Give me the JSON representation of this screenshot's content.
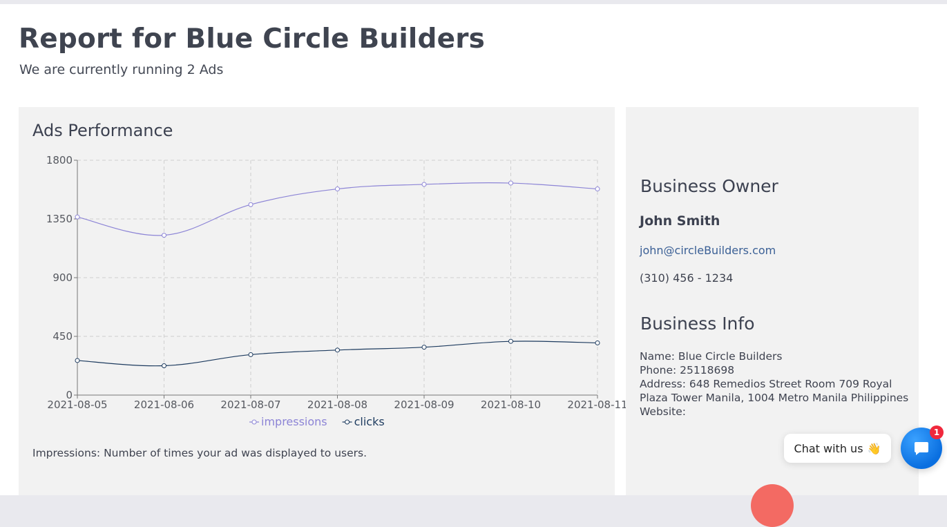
{
  "header": {
    "title": "Report for Blue Circle Builders",
    "subtitle": "We are currently running 2 Ads"
  },
  "performance": {
    "title": "Ads Performance",
    "note": "Impressions: Number of times your ad was displayed to users."
  },
  "chart_data": {
    "type": "line",
    "title": "Ads Performance",
    "xlabel": "",
    "ylabel": "",
    "x": [
      "2021-08-05",
      "2021-08-06",
      "2021-08-07",
      "2021-08-08",
      "2021-08-09",
      "2021-08-10",
      "2021-08-11"
    ],
    "y_ticks": [
      0,
      450,
      900,
      1350,
      1800
    ],
    "ylim": [
      0,
      1800
    ],
    "grid": true,
    "legend_position": "bottom",
    "series": [
      {
        "name": "impressions",
        "color": "#8c84d6",
        "values": [
          1365,
          1225,
          1460,
          1580,
          1615,
          1625,
          1580
        ]
      },
      {
        "name": "clicks",
        "color": "#1c3a5e",
        "values": [
          265,
          225,
          310,
          345,
          367,
          412,
          400
        ]
      }
    ]
  },
  "owner": {
    "heading": "Business Owner",
    "name": "John Smith",
    "email": "john@circleBuilders.com",
    "phone": "(310) 456 - 1234"
  },
  "info": {
    "heading": "Business Info",
    "name_line": "Name: Blue Circle Builders",
    "phone_line": "Phone: 25118698",
    "address_line": "Address: 648 Remedios Street Room 709 Royal Plaza Tower Manila, 1004 Metro Manila Philippines",
    "website_line": "Website:"
  },
  "chat": {
    "label": "Chat with us",
    "emoji": "👋",
    "badge": "1",
    "icon": "chat-icon"
  },
  "colors": {
    "panel_bg": "#f2f2f2",
    "link": "#3a5f95",
    "chat_button": "#0a6fe0",
    "badge": "#f0283c"
  }
}
